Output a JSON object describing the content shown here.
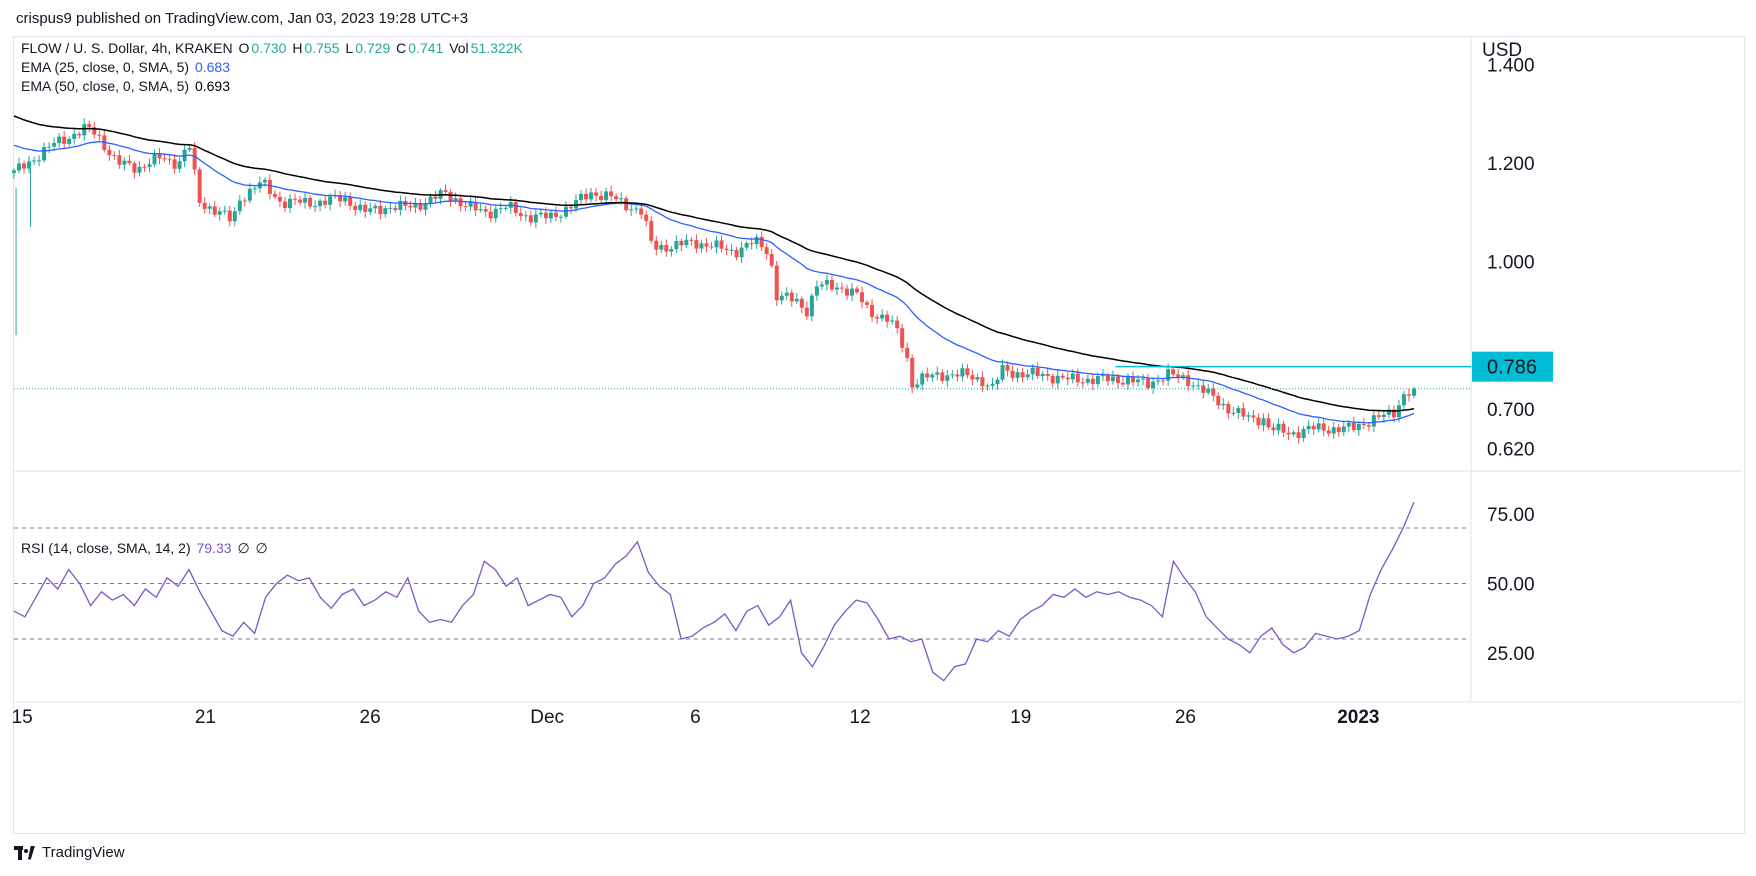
{
  "header": {
    "publisher": "crispus9 published on TradingView.com, Jan 03, 2023 19:28 UTC+3"
  },
  "footer": {
    "brand": "TradingView"
  },
  "legend": {
    "symbol": "FLOW / U. S. Dollar, 4h, KRAKEN",
    "o_label": "O",
    "o": "0.730",
    "h_label": "H",
    "h": "0.755",
    "l_label": "L",
    "l": "0.729",
    "c_label": "C",
    "c": "0.741",
    "vol_label": "Vol",
    "vol": "51.322K",
    "ema25_label": "EMA (25, close, 0, SMA, 5)",
    "ema25_value": "0.683",
    "ema50_label": "EMA (50, close, 0, SMA, 5)",
    "ema50_value": "0.693",
    "rsi_label": "RSI (14, close, SMA, 14, 2)",
    "rsi_value": "79.33",
    "rsi_extra1": "∅",
    "rsi_extra2": "∅"
  },
  "colors": {
    "up": "#26a69a",
    "down": "#ef5350",
    "ema25": "#2962ff",
    "ema50": "#000000",
    "rsi": "#7e57c2",
    "level": "#00bcd4",
    "last_price_line": "#26a69a"
  },
  "chart_data": [
    {
      "type": "candlestick",
      "title": "FLOW / U. S. Dollar, 4h, KRAKEN",
      "ylabel": "USD",
      "ylim": [
        0.58,
        1.45
      ],
      "y_ticks": [
        "0.620",
        "0.700",
        "1.000",
        "1.200",
        "1.400"
      ],
      "x_ticks": [
        "15",
        "21",
        "26",
        "Dec",
        "6",
        "12",
        "19",
        "26",
        "2023"
      ],
      "horizontal_level": {
        "value": 0.786,
        "label": "0.786"
      },
      "last_close": 0.741,
      "close_path": [
        {
          "t": 0.0,
          "v": 1.18
        },
        {
          "t": 2.0,
          "v": 1.24
        },
        {
          "t": 3.5,
          "v": 1.27
        },
        {
          "t": 4.0,
          "v": 1.26
        },
        {
          "t": 5.0,
          "v": 1.2
        },
        {
          "t": 6.0,
          "v": 1.19
        },
        {
          "t": 7.0,
          "v": 1.21
        },
        {
          "t": 8.0,
          "v": 1.2
        },
        {
          "t": 8.5,
          "v": 1.24
        },
        {
          "t": 9.0,
          "v": 1.12
        },
        {
          "t": 10.0,
          "v": 1.1
        },
        {
          "t": 10.6,
          "v": 1.08
        },
        {
          "t": 11.0,
          "v": 1.13
        },
        {
          "t": 12.0,
          "v": 1.16
        },
        {
          "t": 13.0,
          "v": 1.12
        },
        {
          "t": 14.0,
          "v": 1.12
        },
        {
          "t": 15.0,
          "v": 1.12
        },
        {
          "t": 16.0,
          "v": 1.13
        },
        {
          "t": 17.0,
          "v": 1.1
        },
        {
          "t": 18.0,
          "v": 1.11
        },
        {
          "t": 19.0,
          "v": 1.11
        },
        {
          "t": 20.0,
          "v": 1.12
        },
        {
          "t": 21.0,
          "v": 1.14
        },
        {
          "t": 22.0,
          "v": 1.11
        },
        {
          "t": 23.0,
          "v": 1.1
        },
        {
          "t": 24.0,
          "v": 1.11
        },
        {
          "t": 25.0,
          "v": 1.09
        },
        {
          "t": 26.0,
          "v": 1.09
        },
        {
          "t": 27.0,
          "v": 1.11
        },
        {
          "t": 28.0,
          "v": 1.14
        },
        {
          "t": 29.0,
          "v": 1.13
        },
        {
          "t": 30.0,
          "v": 1.11
        },
        {
          "t": 30.5,
          "v": 1.1
        },
        {
          "t": 31.0,
          "v": 1.03
        },
        {
          "t": 32.0,
          "v": 1.03
        },
        {
          "t": 33.0,
          "v": 1.04
        },
        {
          "t": 34.0,
          "v": 1.03
        },
        {
          "t": 35.0,
          "v": 1.02
        },
        {
          "t": 36.0,
          "v": 1.04
        },
        {
          "t": 36.7,
          "v": 1.02
        },
        {
          "t": 37.0,
          "v": 0.93
        },
        {
          "t": 38.0,
          "v": 0.92
        },
        {
          "t": 38.5,
          "v": 0.9
        },
        {
          "t": 39.0,
          "v": 0.95
        },
        {
          "t": 40.0,
          "v": 0.95
        },
        {
          "t": 41.0,
          "v": 0.93
        },
        {
          "t": 41.5,
          "v": 0.9
        },
        {
          "t": 42.0,
          "v": 0.89
        },
        {
          "t": 42.5,
          "v": 0.88
        },
        {
          "t": 43.0,
          "v": 0.85
        },
        {
          "t": 43.4,
          "v": 0.8
        },
        {
          "t": 43.6,
          "v": 0.75
        },
        {
          "t": 44.0,
          "v": 0.76
        },
        {
          "t": 45.0,
          "v": 0.77
        },
        {
          "t": 46.0,
          "v": 0.77
        },
        {
          "t": 47.0,
          "v": 0.76
        },
        {
          "t": 47.5,
          "v": 0.74
        },
        {
          "t": 48.0,
          "v": 0.78
        },
        {
          "t": 49.0,
          "v": 0.77
        },
        {
          "t": 50.0,
          "v": 0.77
        },
        {
          "t": 51.0,
          "v": 0.76
        },
        {
          "t": 52.0,
          "v": 0.76
        },
        {
          "t": 53.0,
          "v": 0.76
        },
        {
          "t": 54.0,
          "v": 0.76
        },
        {
          "t": 55.0,
          "v": 0.75
        },
        {
          "t": 55.5,
          "v": 0.76
        },
        {
          "t": 56.0,
          "v": 0.77
        },
        {
          "t": 57.0,
          "v": 0.76
        },
        {
          "t": 58.0,
          "v": 0.73
        },
        {
          "t": 59.0,
          "v": 0.7
        },
        {
          "t": 60.0,
          "v": 0.68
        },
        {
          "t": 60.7,
          "v": 0.68
        },
        {
          "t": 61.0,
          "v": 0.66
        },
        {
          "t": 62.0,
          "v": 0.65
        },
        {
          "t": 63.0,
          "v": 0.66
        },
        {
          "t": 64.0,
          "v": 0.66
        },
        {
          "t": 65.0,
          "v": 0.66
        },
        {
          "t": 66.0,
          "v": 0.68
        },
        {
          "t": 67.0,
          "v": 0.69
        },
        {
          "t": 67.5,
          "v": 0.73
        },
        {
          "t": 68.0,
          "v": 0.741
        }
      ],
      "series": [
        {
          "name": "EMA (25, close, 0, SMA, 5)",
          "last": 0.683
        },
        {
          "name": "EMA (50, close, 0, SMA, 5)",
          "last": 0.693
        }
      ]
    },
    {
      "type": "line",
      "title": "RSI (14, close, SMA, 14, 2)",
      "ylim": [
        8,
        88
      ],
      "y_ticks": [
        "25.00",
        "50.00",
        "75.00"
      ],
      "levels": [
        30,
        50,
        70
      ],
      "series": [
        {
          "name": "RSI",
          "last": 79.33,
          "values": [
            40,
            38,
            45,
            52,
            48,
            55,
            50,
            42,
            47,
            44,
            46,
            42,
            48,
            45,
            52,
            49,
            55,
            47,
            40,
            33,
            31,
            36,
            32,
            45,
            50,
            53,
            51,
            52,
            45,
            41,
            46,
            48,
            42,
            44,
            47,
            45,
            52,
            40,
            36,
            37,
            36,
            42,
            46,
            58,
            55,
            49,
            52,
            42,
            44,
            46,
            45,
            38,
            42,
            50,
            52,
            57,
            60,
            65,
            54,
            49,
            46,
            30,
            31,
            34,
            36,
            39,
            33,
            40,
            42,
            35,
            38,
            44,
            25,
            20,
            27,
            35,
            40,
            44,
            43,
            37,
            30,
            31,
            29,
            30,
            18,
            15,
            20,
            21,
            30,
            29,
            33,
            31,
            37,
            40,
            42,
            46,
            45,
            48,
            45,
            47,
            46,
            47,
            45,
            44,
            42,
            38,
            58,
            52,
            47,
            38,
            34,
            30,
            28,
            25,
            31,
            34,
            28,
            25,
            27,
            32,
            31,
            30,
            31,
            33,
            46,
            55,
            62,
            70,
            79.33
          ]
        }
      ]
    }
  ]
}
